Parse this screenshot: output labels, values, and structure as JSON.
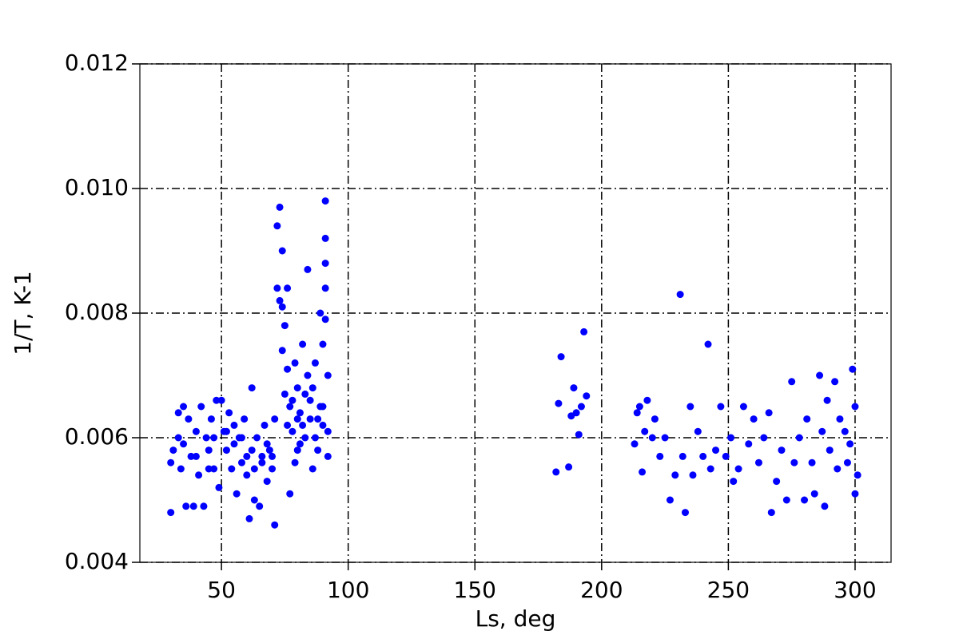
{
  "chart_data": {
    "type": "scatter",
    "x_label": "Ls, deg",
    "y_label": "1/T, K-1",
    "color": "#0000ff",
    "grid": true,
    "xlim": [
      17.8,
      314.2
    ],
    "ylim": [
      0.004,
      0.012
    ],
    "xticks": [
      50,
      100,
      150,
      200,
      250,
      300
    ],
    "yticks": [
      0.004,
      0.006,
      0.008,
      {
        "value": 0.01,
        "label": "0.010"
      },
      0.012
    ],
    "x": [
      30,
      30,
      31,
      33,
      33,
      34,
      35,
      36,
      37,
      38,
      39,
      40,
      41,
      42,
      43,
      44,
      45,
      46,
      47,
      48,
      49,
      50,
      51,
      52,
      53,
      54,
      55,
      56,
      57,
      58,
      59,
      60,
      61,
      62,
      62,
      63,
      64,
      65,
      66,
      67,
      68,
      69,
      70,
      71,
      71,
      72,
      72,
      73,
      73,
      74,
      74,
      74,
      75,
      75,
      76,
      76,
      77,
      77,
      78,
      79,
      80,
      80,
      81,
      82,
      83,
      84,
      84,
      85,
      86,
      87,
      88,
      88,
      89,
      90,
      90,
      91,
      91,
      91,
      91,
      91,
      92,
      92,
      92,
      35,
      40,
      45,
      47,
      52,
      55,
      58,
      60,
      63,
      66,
      68,
      70,
      76,
      78,
      80,
      82,
      83,
      85,
      86,
      87,
      89,
      90,
      79,
      81,
      182,
      183,
      184,
      187,
      188,
      189,
      190,
      191,
      192,
      193,
      194,
      213,
      214,
      215,
      216,
      217,
      218,
      220,
      221,
      223,
      225,
      227,
      229,
      231,
      232,
      233,
      235,
      236,
      238,
      240,
      242,
      243,
      245,
      247,
      249,
      251,
      252,
      254,
      256,
      258,
      260,
      262,
      264,
      266,
      267,
      269,
      271,
      273,
      275,
      276,
      278,
      280,
      281,
      283,
      284,
      286,
      287,
      288,
      289,
      290,
      292,
      293,
      294,
      296,
      297,
      298,
      299,
      300,
      300,
      301
    ],
    "values": [
      0.0048,
      0.0056,
      0.0058,
      0.006,
      0.0064,
      0.0055,
      0.0065,
      0.0049,
      0.0063,
      0.0057,
      0.0049,
      0.0061,
      0.0054,
      0.0065,
      0.0049,
      0.006,
      0.0058,
      0.0063,
      0.0055,
      0.0066,
      0.0052,
      0.0066,
      0.0061,
      0.0058,
      0.0064,
      0.0055,
      0.0062,
      0.0051,
      0.006,
      0.0056,
      0.0063,
      0.0054,
      0.0047,
      0.0068,
      0.0058,
      0.005,
      0.006,
      0.0049,
      0.0057,
      0.0062,
      0.0053,
      0.0058,
      0.0055,
      0.0046,
      0.0063,
      0.0094,
      0.0084,
      0.0082,
      0.0097,
      0.009,
      0.0081,
      0.0074,
      0.0078,
      0.0067,
      0.0084,
      0.0071,
      0.0051,
      0.0065,
      0.0061,
      0.0072,
      0.0058,
      0.0068,
      0.0064,
      0.0075,
      0.006,
      0.0087,
      0.007,
      0.0066,
      0.0055,
      0.0072,
      0.0063,
      0.0058,
      0.008,
      0.0075,
      0.0065,
      0.0098,
      0.0092,
      0.0088,
      0.0084,
      0.0079,
      0.007,
      0.0061,
      0.0057,
      0.0059,
      0.0057,
      0.0055,
      0.006,
      0.0061,
      0.0059,
      0.006,
      0.0057,
      0.0055,
      0.0056,
      0.0059,
      0.0057,
      0.0062,
      0.0066,
      0.0063,
      0.0062,
      0.0067,
      0.0063,
      0.0068,
      0.006,
      0.0065,
      0.0062,
      0.0056,
      0.0059,
      0.00545,
      0.00655,
      0.0073,
      0.00553,
      0.00635,
      0.0068,
      0.0064,
      0.00605,
      0.0065,
      0.0077,
      0.00667,
      0.0059,
      0.0064,
      0.0065,
      0.00545,
      0.0061,
      0.0066,
      0.006,
      0.0063,
      0.0057,
      0.006,
      0.005,
      0.0054,
      0.0083,
      0.0057,
      0.0048,
      0.0065,
      0.0054,
      0.0061,
      0.0057,
      0.0075,
      0.0055,
      0.0058,
      0.0065,
      0.0057,
      0.006,
      0.0053,
      0.0055,
      0.0065,
      0.0059,
      0.0063,
      0.0056,
      0.006,
      0.0064,
      0.0048,
      0.0053,
      0.0058,
      0.005,
      0.0069,
      0.0056,
      0.006,
      0.005,
      0.0063,
      0.0056,
      0.0051,
      0.007,
      0.0061,
      0.0049,
      0.0066,
      0.0058,
      0.0069,
      0.0055,
      0.0063,
      0.0061,
      0.0056,
      0.0059,
      0.0071,
      0.0065,
      0.0051,
      0.0054
    ]
  }
}
